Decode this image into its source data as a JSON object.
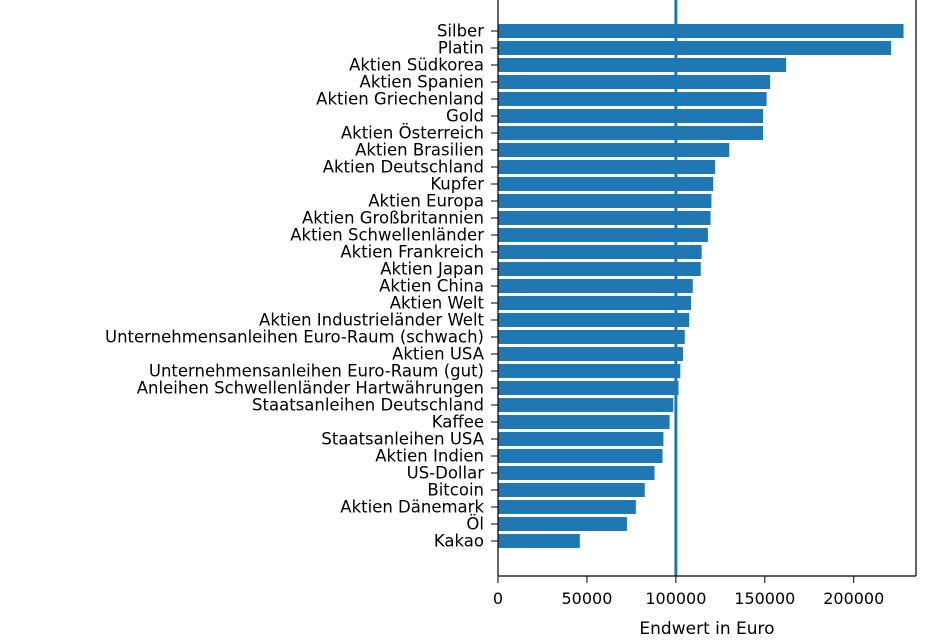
{
  "chart_data": {
    "type": "bar",
    "orientation": "horizontal",
    "categories": [
      "Silber",
      "Platin",
      "Aktien Südkorea",
      "Aktien Spanien",
      "Aktien Griechenland",
      "Gold",
      "Aktien Österreich",
      "Aktien Brasilien",
      "Aktien Deutschland",
      "Kupfer",
      "Aktien Europa",
      "Aktien Großbritannien",
      "Aktien Schwellenländer",
      "Aktien Frankreich",
      "Aktien Japan",
      "Aktien China",
      "Aktien Welt",
      "Aktien Industrieländer Welt",
      "Unternehmensanleihen Euro-Raum (schwach)",
      "Aktien USA",
      "Unternehmensanleihen Euro-Raum (gut)",
      "Anleihen Schwellenländer Hartwährungen",
      "Staatsanleihen Deutschland",
      "Kaffee",
      "Staatsanleihen USA",
      "Aktien Indien",
      "US-Dollar",
      "Bitcoin",
      "Aktien Dänemark",
      "Öl",
      "Kakao"
    ],
    "values": [
      228000,
      221000,
      162000,
      153000,
      151000,
      149000,
      149000,
      130000,
      122000,
      121000,
      120000,
      119500,
      118000,
      114500,
      114000,
      109500,
      108500,
      107500,
      105000,
      104000,
      102500,
      101500,
      98500,
      96500,
      93000,
      92500,
      88000,
      82500,
      77500,
      72500,
      46000
    ],
    "reference_line": 100000,
    "xlabel": "Endwert in Euro",
    "ylabel": "",
    "title": "",
    "xlim": [
      0,
      235000
    ],
    "xticks": [
      0,
      50000,
      100000,
      150000,
      200000
    ],
    "xtick_labels": [
      "0",
      "50000",
      "100000",
      "150000",
      "200000"
    ],
    "grid": false,
    "bar_color": "#1f77b4",
    "line_color": "#1f77b4"
  }
}
